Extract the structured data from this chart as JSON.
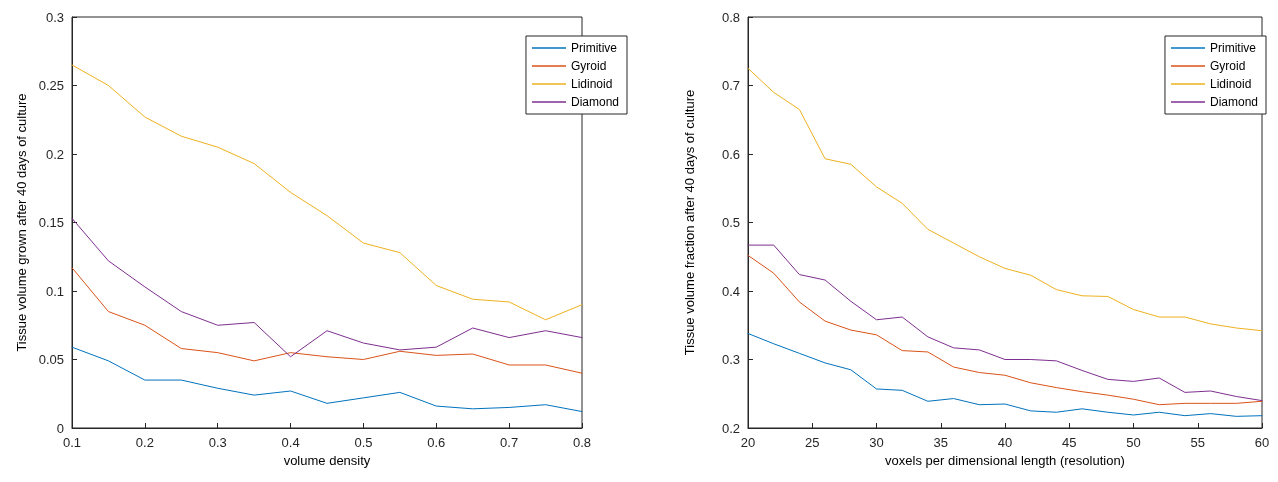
{
  "chart_data": [
    {
      "type": "line",
      "xlabel": "volume density",
      "ylabel": "Tissue volume grown after 40 days of culture",
      "x": [
        0.1,
        0.15,
        0.2,
        0.25,
        0.3,
        0.35,
        0.4,
        0.45,
        0.5,
        0.55,
        0.6,
        0.65,
        0.7,
        0.75,
        0.8
      ],
      "series": [
        {
          "name": "Primitive",
          "color": "#0072bd",
          "values": [
            0.059,
            0.049,
            0.035,
            0.035,
            0.029,
            0.024,
            0.027,
            0.018,
            0.022,
            0.026,
            0.016,
            0.014,
            0.015,
            0.017,
            0.012
          ]
        },
        {
          "name": "Gyroid",
          "color": "#d95319",
          "values": [
            0.117,
            0.085,
            0.075,
            0.058,
            0.055,
            0.049,
            0.055,
            0.052,
            0.05,
            0.056,
            0.053,
            0.054,
            0.046,
            0.046,
            0.04
          ]
        },
        {
          "name": "Lidinoid",
          "color": "#edb120",
          "values": [
            0.265,
            0.25,
            0.227,
            0.213,
            0.205,
            0.193,
            0.172,
            0.155,
            0.135,
            0.128,
            0.104,
            0.094,
            0.092,
            0.079,
            0.09
          ]
        },
        {
          "name": "Diamond",
          "color": "#7e2f8e",
          "values": [
            0.153,
            0.122,
            0.103,
            0.085,
            0.075,
            0.077,
            0.052,
            0.071,
            0.062,
            0.057,
            0.059,
            0.073,
            0.066,
            0.071,
            0.066
          ]
        }
      ],
      "xlim": [
        0.1,
        0.8
      ],
      "xticks": [
        0.1,
        0.2,
        0.3,
        0.4,
        0.5,
        0.6,
        0.7,
        0.8
      ],
      "ylim": [
        0,
        0.3
      ],
      "yticks": [
        0,
        0.05,
        0.1,
        0.15,
        0.2,
        0.25,
        0.3
      ],
      "grid": false,
      "legend": "top right",
      "marker": "none",
      "line_style": "solid"
    },
    {
      "type": "line",
      "xlabel": "voxels per dimensional length (resolution)",
      "ylabel": "Tissue volume fraction after 40 days of culture",
      "x": [
        20,
        22,
        24,
        26,
        28,
        30,
        32,
        34,
        36,
        38,
        40,
        42,
        44,
        46,
        48,
        50,
        52,
        54,
        56,
        58,
        60
      ],
      "series": [
        {
          "name": "Primitive",
          "color": "#0072bd",
          "values": [
            0.338,
            0.323,
            0.309,
            0.295,
            0.285,
            0.257,
            0.255,
            0.239,
            0.243,
            0.234,
            0.235,
            0.225,
            0.223,
            0.228,
            0.223,
            0.219,
            0.223,
            0.218,
            0.221,
            0.217,
            0.218
          ]
        },
        {
          "name": "Gyroid",
          "color": "#d95319",
          "values": [
            0.452,
            0.426,
            0.384,
            0.356,
            0.343,
            0.336,
            0.313,
            0.311,
            0.289,
            0.281,
            0.277,
            0.266,
            0.259,
            0.253,
            0.248,
            0.242,
            0.234,
            0.236,
            0.236,
            0.236,
            0.239
          ]
        },
        {
          "name": "Lidinoid",
          "color": "#edb120",
          "values": [
            0.725,
            0.69,
            0.665,
            0.593,
            0.585,
            0.552,
            0.528,
            0.49,
            0.47,
            0.45,
            0.433,
            0.423,
            0.402,
            0.393,
            0.392,
            0.373,
            0.362,
            0.362,
            0.352,
            0.346,
            0.342
          ]
        },
        {
          "name": "Diamond",
          "color": "#7e2f8e",
          "values": [
            0.467,
            0.467,
            0.424,
            0.416,
            0.385,
            0.358,
            0.362,
            0.333,
            0.317,
            0.314,
            0.3,
            0.3,
            0.298,
            0.284,
            0.271,
            0.268,
            0.273,
            0.252,
            0.254,
            0.246,
            0.24
          ]
        }
      ],
      "xlim": [
        20,
        60
      ],
      "xticks": [
        20,
        25,
        30,
        35,
        40,
        45,
        50,
        55,
        60
      ],
      "ylim": [
        0.2,
        0.8
      ],
      "yticks": [
        0.2,
        0.3,
        0.4,
        0.5,
        0.6,
        0.7,
        0.8
      ],
      "grid": false,
      "legend": "top right",
      "marker": "none",
      "line_style": "solid"
    }
  ]
}
